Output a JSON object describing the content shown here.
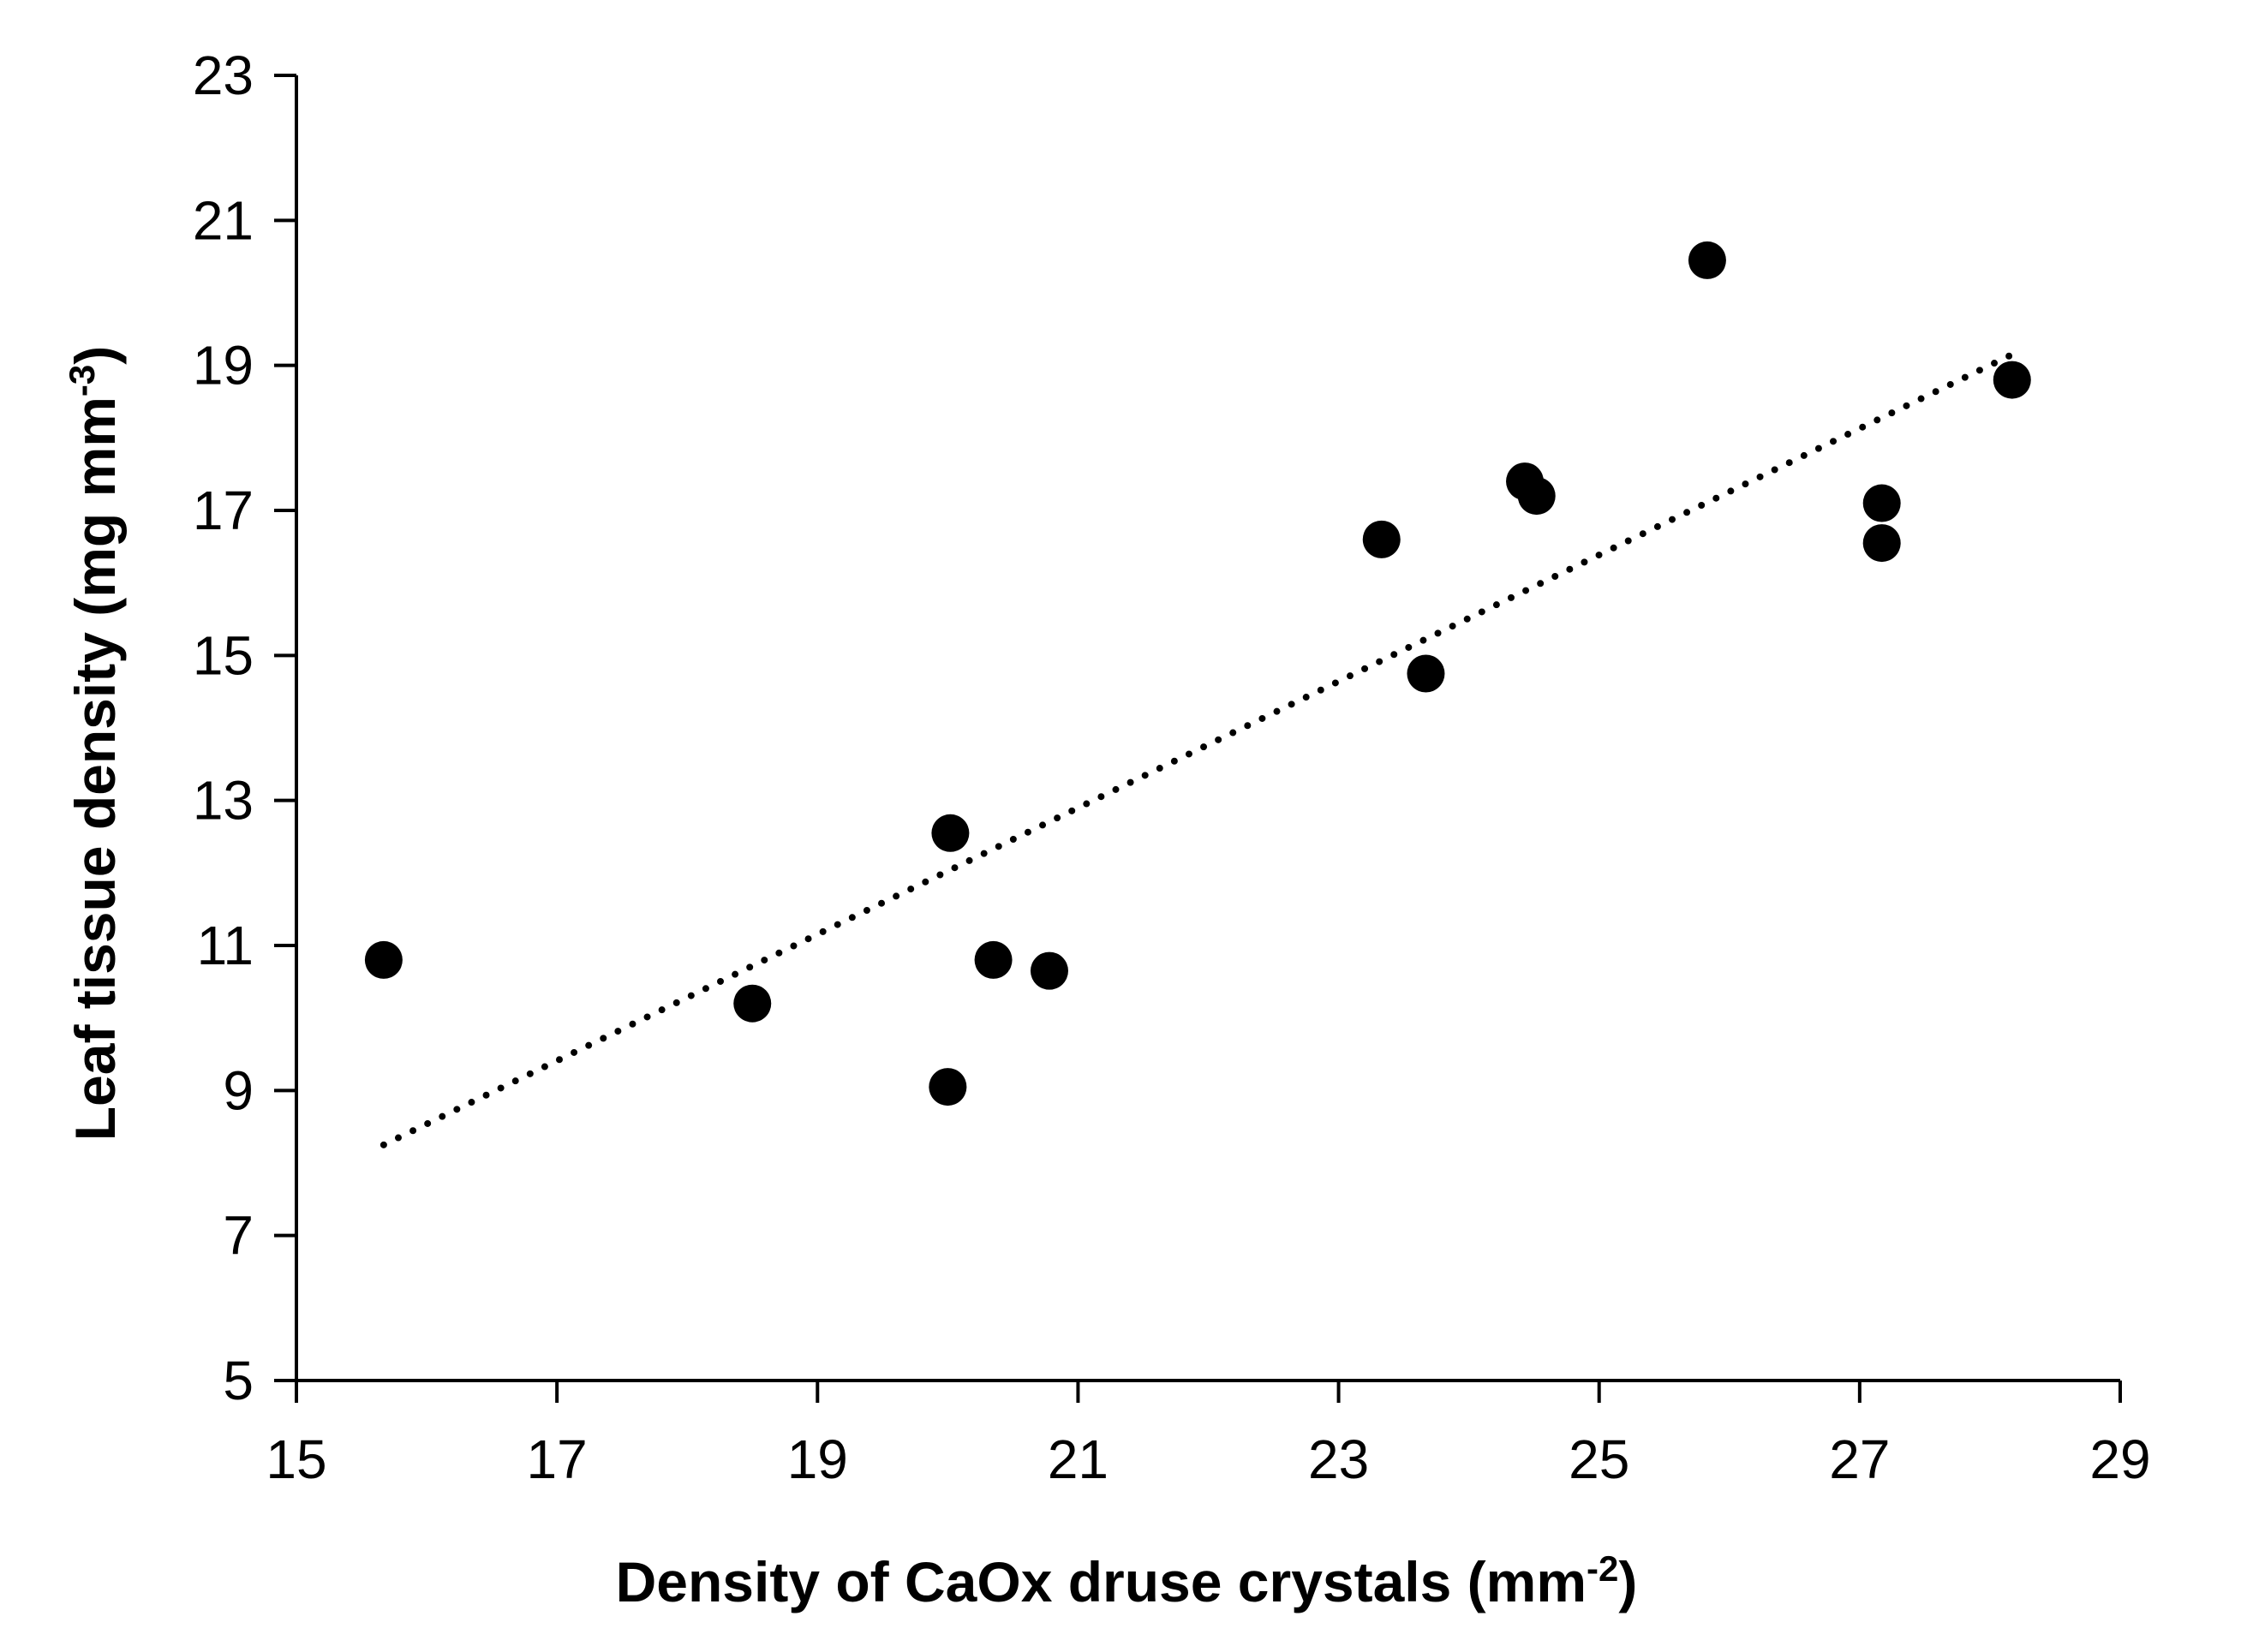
{
  "chart_data": {
    "type": "scatter",
    "title": "",
    "xlabel": {
      "main": "Density of CaOx druse crystals (mm",
      "sup": "-2",
      "close": ")"
    },
    "ylabel": {
      "main": "Leaf tissue density (mg mm",
      "sup": "-3",
      "close": ")"
    },
    "xlim": [
      15,
      29
    ],
    "ylim": [
      5,
      23
    ],
    "xticks": [
      15,
      17,
      19,
      21,
      23,
      25,
      27,
      29
    ],
    "yticks": [
      5,
      7,
      9,
      11,
      13,
      15,
      17,
      19,
      21,
      23
    ],
    "grid": false,
    "legend": "none",
    "series": [
      {
        "name": "Leaf tissue density",
        "marker": "circle",
        "color": "#000000",
        "points": [
          {
            "x": 15.67,
            "y": 10.8
          },
          {
            "x": 18.5,
            "y": 10.2
          },
          {
            "x": 20.0,
            "y": 9.05
          },
          {
            "x": 20.02,
            "y": 12.55
          },
          {
            "x": 20.35,
            "y": 10.8
          },
          {
            "x": 20.78,
            "y": 10.65
          },
          {
            "x": 23.33,
            "y": 16.6
          },
          {
            "x": 23.67,
            "y": 14.75
          },
          {
            "x": 24.43,
            "y": 17.4
          },
          {
            "x": 24.52,
            "y": 17.2
          },
          {
            "x": 25.83,
            "y": 20.45
          },
          {
            "x": 27.17,
            "y": 17.1
          },
          {
            "x": 27.17,
            "y": 16.55
          },
          {
            "x": 28.17,
            "y": 18.8
          }
        ]
      }
    ],
    "trendline": {
      "type": "linear",
      "style": "dotted",
      "color": "#000000",
      "x": [
        15.67,
        28.17
      ],
      "y": [
        8.25,
        19.15
      ]
    }
  }
}
